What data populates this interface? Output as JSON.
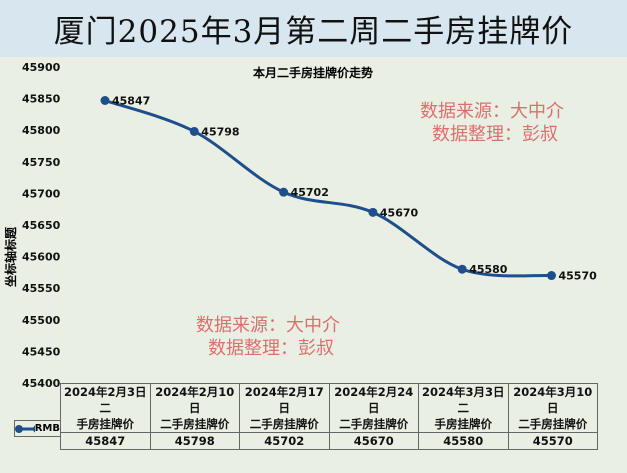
{
  "title": "厦门2025年3月第二周二手房挂牌价",
  "watermark": {
    "line1": "数据来源：大中介",
    "line2": "数据整理：彭叔"
  },
  "colors": {
    "line": "#1f4e8c",
    "watermark": "#d9706e",
    "title_band": "#d8e7ef",
    "plot_bg": "#e9efe2"
  },
  "chart_data": {
    "type": "line",
    "title": "本月二手房挂牌价走势",
    "ylabel": "坐标轴标题",
    "ylim": [
      45400,
      45900
    ],
    "yticks": [
      45900,
      45850,
      45800,
      45750,
      45700,
      45650,
      45600,
      45550,
      45500,
      45450,
      45400
    ],
    "categories": [
      "2024年2月3日二手房挂牌价",
      "2024年2月10日二手房挂牌价",
      "2024年2月17日二手房挂牌价",
      "2024年2月24日二手房挂牌价",
      "2024年3月3日二手房挂牌价",
      "2024年3月10日二手房挂牌价"
    ],
    "category_lines": [
      [
        "2024年2月3日二",
        "手房挂牌价"
      ],
      [
        "2024年2月10日",
        "二手房挂牌价"
      ],
      [
        "2024年2月17日",
        "二手房挂牌价"
      ],
      [
        "2024年2月24日",
        "二手房挂牌价"
      ],
      [
        "2024年3月3日二",
        "手房挂牌价"
      ],
      [
        "2024年3月10日",
        "二手房挂牌价"
      ]
    ],
    "series": [
      {
        "name": "RMB",
        "values": [
          45847,
          45798,
          45702,
          45670,
          45580,
          45570
        ]
      }
    ],
    "data_labels": true,
    "smooth": true,
    "grid": false,
    "legend": "data-table"
  }
}
